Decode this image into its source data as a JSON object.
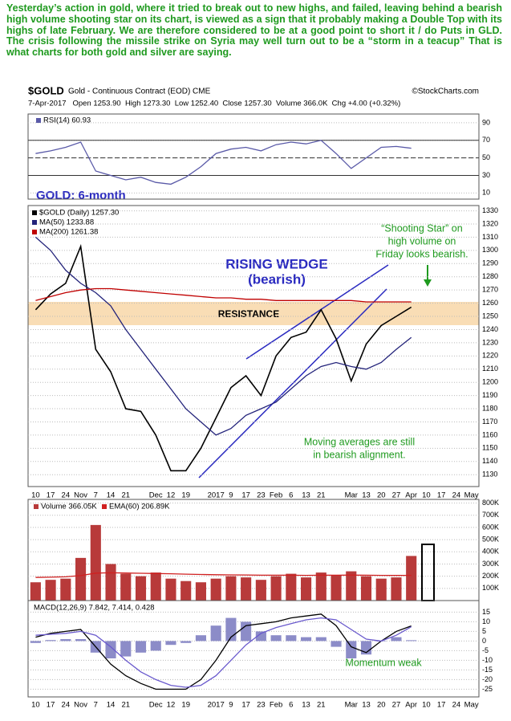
{
  "commentary": "Yesterday’s action in gold, where it tried to break out to new highs, and failed, leaving behind a bearish high volume shooting star on its chart, is viewed as a sign that it probably making a Double Top with its highs of late February. We are therefore considered to be at a good point to short it / do Puts in GLD. The crisis following the missile strike on Syria may well turn out to be a “storm in a teacup” That is what charts for both gold and silver are saying.",
  "header": {
    "symbol": "$GOLD",
    "description": "Gold - Continuous Contract (EOD) CME",
    "source": "©StockCharts.com",
    "quote": "7-Apr-2017   Open 1253.90  High 1273.30  Low 1252.40  Close 1257.30  Volume 366.0K  Chg +4.00 (+0.32%)"
  },
  "chart_data": [
    {
      "type": "line",
      "title": "GOLD: 6-month",
      "ylim": [
        3,
        100
      ],
      "yticks": [
        10,
        30,
        50,
        70,
        90
      ],
      "grid": true,
      "ref_lines": [
        70,
        50,
        30
      ],
      "series": [
        {
          "name": "RSI(14) 60.93",
          "color": "#5a5aa8",
          "values": [
            55,
            58,
            62,
            68,
            35,
            30,
            25,
            28,
            22,
            20,
            28,
            40,
            55,
            60,
            62,
            58,
            65,
            68,
            66,
            70,
            55,
            38,
            50,
            62,
            63,
            61,
            null,
            null,
            null,
            null
          ]
        }
      ]
    },
    {
      "type": "line",
      "ylim": [
        1121,
        1334
      ],
      "yticks": [
        1130,
        1140,
        1150,
        1160,
        1170,
        1180,
        1190,
        1200,
        1210,
        1220,
        1230,
        1240,
        1250,
        1260,
        1270,
        1280,
        1290,
        1300,
        1310,
        1320,
        1330
      ],
      "grid": true,
      "categories": [
        "10",
        "17",
        "24",
        "Nov",
        "7",
        "14",
        "21",
        null,
        "Dec",
        "12",
        "19",
        null,
        "2017",
        "9",
        "17",
        "23",
        "Feb",
        "6",
        "13",
        "21",
        null,
        "Mar",
        "13",
        "20",
        "27",
        "Apr",
        "10",
        "17",
        "24",
        "May"
      ],
      "annotations": [
        [
          "RISING WEDGE",
          "(bearish)"
        ],
        "RESISTANCE",
        [
          "“Shooting Star” on",
          "high volume on",
          "Friday looks bearish."
        ],
        [
          "Moving averages are still",
          "in bearish alignment."
        ]
      ],
      "series": [
        {
          "name": "$GOLD (Daily) 1257.30",
          "color": "#000000",
          "values": [
            1255,
            1267,
            1275,
            1303,
            1225,
            1208,
            1180,
            1178,
            1160,
            1133,
            1133,
            1150,
            1173,
            1196,
            1205,
            1190,
            1220,
            1234,
            1238,
            1255,
            1233,
            1201,
            1229,
            1243,
            1250,
            1257,
            null,
            null,
            null,
            null
          ]
        },
        {
          "name": "MA(50) 1233.88",
          "color": "#23237a",
          "values": [
            1310,
            1300,
            1285,
            1275,
            1268,
            1258,
            1240,
            1225,
            1210,
            1195,
            1180,
            1170,
            1160,
            1165,
            1175,
            1180,
            1185,
            1195,
            1205,
            1212,
            1215,
            1212,
            1210,
            1215,
            1225,
            1234,
            null,
            null,
            null,
            null
          ]
        },
        {
          "name": "MA(200) 1261.38",
          "color": "#c00000",
          "values": [
            1262,
            1265,
            1268,
            1270,
            1271,
            1271,
            1270,
            1269,
            1268,
            1267,
            1266,
            1265,
            1264,
            1264,
            1263,
            1263,
            1262,
            1262,
            1262,
            1262,
            1262,
            1262,
            1261,
            1261,
            1261,
            1261,
            null,
            null,
            null,
            null
          ]
        }
      ]
    },
    {
      "type": "bar",
      "ylim": [
        0,
        830000
      ],
      "grid": true,
      "yticks": [
        {
          "value": 100000,
          "label": "100K"
        },
        {
          "value": 200000,
          "label": "200K"
        },
        {
          "value": 300000,
          "label": "300K"
        },
        {
          "value": 400000,
          "label": "400K"
        },
        {
          "value": 500000,
          "label": "500K"
        },
        {
          "value": 600000,
          "label": "600K"
        },
        {
          "value": 700000,
          "label": "700K"
        },
        {
          "value": 800000,
          "label": "800K"
        }
      ],
      "series": [
        {
          "name": "Volume 366.05K",
          "type": "bar",
          "color": "#b83a3a",
          "values": [
            150000,
            170000,
            180000,
            350000,
            620000,
            300000,
            220000,
            200000,
            230000,
            180000,
            160000,
            150000,
            180000,
            200000,
            190000,
            170000,
            200000,
            220000,
            190000,
            230000,
            210000,
            240000,
            200000,
            180000,
            190000,
            366050,
            null,
            null,
            null,
            null
          ]
        },
        {
          "name": "EMA(60) 206.89K",
          "type": "line",
          "color": "#d02020",
          "values": [
            190000,
            192000,
            195000,
            205000,
            225000,
            228000,
            226000,
            224000,
            222000,
            220000,
            217000,
            214000,
            212000,
            211000,
            210000,
            208000,
            208000,
            208000,
            207000,
            208000,
            208000,
            209000,
            208000,
            207000,
            206000,
            206890,
            null,
            null,
            null,
            null
          ]
        }
      ]
    },
    {
      "type": "line",
      "title": "MACD(12,26,9) 7.842, 7.414, 0.428",
      "annotations": [
        "Momentum weak"
      ],
      "ylim": [
        -29,
        21
      ],
      "yticks": [
        -25,
        -20,
        -15,
        -10,
        -5,
        0,
        5,
        10,
        15
      ],
      "grid": true,
      "series": [
        {
          "type": "bar",
          "color": "#8c8cc8",
          "values": [
            -1,
            0.5,
            1,
            1,
            -6,
            -9,
            -8,
            -6,
            -5,
            -2,
            -1,
            3,
            8,
            12,
            10,
            5,
            3,
            3,
            2,
            2,
            -3,
            -9,
            -7,
            0,
            2,
            0.428,
            null,
            null,
            null,
            null
          ]
        },
        {
          "type": "line",
          "color": "#000000",
          "values": [
            2,
            4,
            5,
            6,
            -3,
            -12,
            -18,
            -22,
            -25,
            -25,
            -25,
            -20,
            -10,
            2,
            8,
            9,
            10,
            12,
            13,
            14,
            8,
            -3,
            -6,
            0,
            5,
            7.842,
            null,
            null,
            null,
            null
          ]
        },
        {
          "type": "line",
          "color": "#6a5acd",
          "values": [
            3,
            3.5,
            4,
            5,
            3,
            -3,
            -10,
            -16,
            -20,
            -23,
            -24,
            -23,
            -18,
            -10,
            -2,
            4,
            7,
            9,
            11,
            12,
            11,
            6,
            1,
            0,
            3,
            7.414,
            null,
            null,
            null,
            null
          ]
        }
      ]
    }
  ]
}
